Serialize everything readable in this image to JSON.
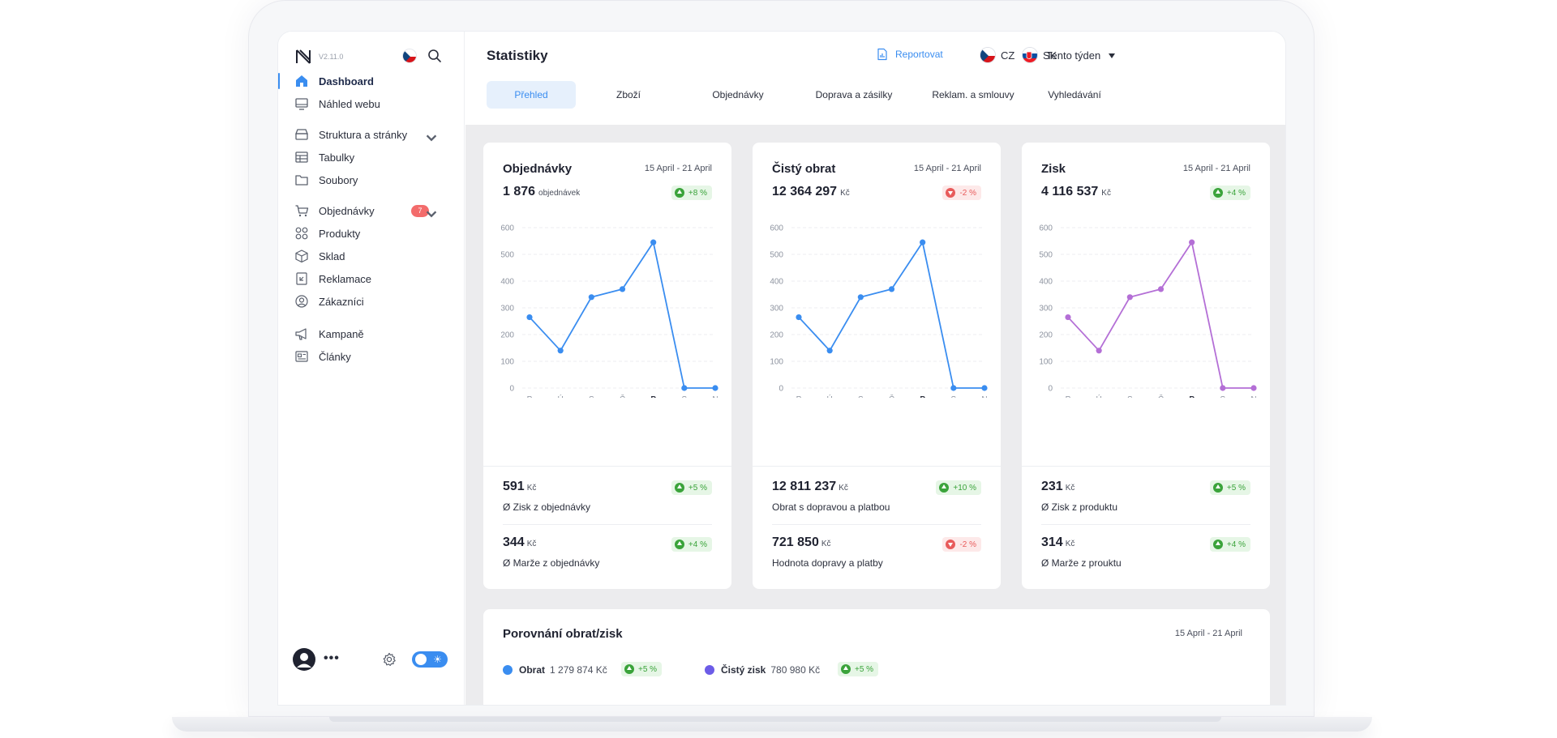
{
  "app": {
    "version": "V2.11.0"
  },
  "sidebar": {
    "items": [
      {
        "label": "Dashboard",
        "icon": "home-icon",
        "active": true
      },
      {
        "label": "Náhled webu",
        "icon": "monitor-icon"
      },
      {
        "label": "Struktura a stránky",
        "icon": "layers-icon",
        "expandable": true
      },
      {
        "label": "Tabulky",
        "icon": "table-icon"
      },
      {
        "label": "Soubory",
        "icon": "folder-icon"
      },
      {
        "label": "Objednávky",
        "icon": "cart-icon",
        "badge": "7",
        "expandable": true
      },
      {
        "label": "Produkty",
        "icon": "grid-icon"
      },
      {
        "label": "Sklad",
        "icon": "box-icon"
      },
      {
        "label": "Reklamace",
        "icon": "return-icon"
      },
      {
        "label": "Zákazníci",
        "icon": "user-circle-icon"
      },
      {
        "label": "Kampaně",
        "icon": "megaphone-icon"
      },
      {
        "label": "Články",
        "icon": "article-icon"
      }
    ],
    "bottom": {
      "more": "•••"
    }
  },
  "header": {
    "title": "Statistiky",
    "report_label": "Reportovat",
    "languages": [
      "CZ",
      "SK"
    ],
    "period": "Tento týden",
    "tabs": [
      "Přehled",
      "Zboží",
      "Objednávky",
      "Doprava a zásilky",
      "Reklam. a smlouvy",
      "Vyhledávání"
    ],
    "active_tab": "Přehled"
  },
  "colors": {
    "accent": "#3a8df0",
    "purple": "#b46fd6",
    "up": "#3aa33a",
    "down": "#e85b5b",
    "series_obrat": "#3a8df0",
    "series_zisk": "#6c5ce7"
  },
  "cards": [
    {
      "title": "Objednávky",
      "date": "15 April - 21 April",
      "value": "1 876",
      "unit": "objednávek",
      "change": "+8 %",
      "trend": "up",
      "metrics": [
        {
          "value": "591",
          "unit": "Kč",
          "label": "Ø Zisk z objednávky",
          "change": "+5 %",
          "trend": "up"
        },
        {
          "value": "344",
          "unit": "Kč",
          "label": "Ø Marže z objednávky",
          "change": "+4 %",
          "trend": "up"
        }
      ]
    },
    {
      "title": "Čistý obrat",
      "date": "15 April - 21 April",
      "value": "12 364 297",
      "unit": "Kč",
      "change": "-2 %",
      "trend": "down",
      "metrics": [
        {
          "value": "12 811 237",
          "unit": "Kč",
          "label": "Obrat s dopravou a platbou",
          "change": "+10 %",
          "trend": "up"
        },
        {
          "value": "721 850",
          "unit": "Kč",
          "label": "Hodnota dopravy a platby",
          "change": "-2 %",
          "trend": "down"
        }
      ]
    },
    {
      "title": "Zisk",
      "date": "15 April - 21 April",
      "value": "4 116 537",
      "unit": "Kč",
      "change": "+4 %",
      "trend": "up",
      "metrics": [
        {
          "value": "231",
          "unit": "Kč",
          "label": "Ø Zisk z produktu",
          "change": "+5 %",
          "trend": "up"
        },
        {
          "value": "314",
          "unit": "Kč",
          "label": "Ø Marže z prouktu",
          "change": "+4 %",
          "trend": "up"
        }
      ]
    }
  ],
  "compare": {
    "title": "Porovnání obrat/zisk",
    "date": "15 April - 21 April",
    "legend": [
      {
        "name": "Obrat",
        "value": "1 279 874 Kč",
        "change": "+5 %",
        "trend": "up"
      },
      {
        "name": "Čistý zisk",
        "value": "780 980 Kč",
        "change": "+5 %",
        "trend": "up"
      }
    ],
    "axis_peek": "600"
  },
  "chart_data": [
    {
      "type": "line",
      "title": "Objednávky",
      "categories": [
        "P",
        "Ú",
        "S",
        "Č",
        "P",
        "S",
        "N"
      ],
      "highlight_index": 4,
      "values": [
        265,
        140,
        340,
        370,
        545,
        0,
        0
      ],
      "ylim": [
        0,
        600
      ],
      "yticks": [
        0,
        100,
        200,
        300,
        400,
        500,
        600
      ],
      "color": "#3a8df0",
      "grid": true
    },
    {
      "type": "line",
      "title": "Čistý obrat",
      "categories": [
        "P",
        "Ú",
        "S",
        "Č",
        "P",
        "S",
        "N"
      ],
      "highlight_index": 4,
      "values": [
        265,
        140,
        340,
        370,
        545,
        0,
        0
      ],
      "ylim": [
        0,
        600
      ],
      "yticks": [
        0,
        100,
        200,
        300,
        400,
        500,
        600
      ],
      "color": "#3a8df0",
      "grid": true
    },
    {
      "type": "line",
      "title": "Zisk",
      "categories": [
        "P",
        "Ú",
        "S",
        "Č",
        "P",
        "S",
        "N"
      ],
      "highlight_index": 4,
      "values": [
        265,
        140,
        340,
        370,
        545,
        0,
        0
      ],
      "ylim": [
        0,
        600
      ],
      "yticks": [
        0,
        100,
        200,
        300,
        400,
        500,
        600
      ],
      "color": "#b46fd6",
      "grid": true
    }
  ]
}
